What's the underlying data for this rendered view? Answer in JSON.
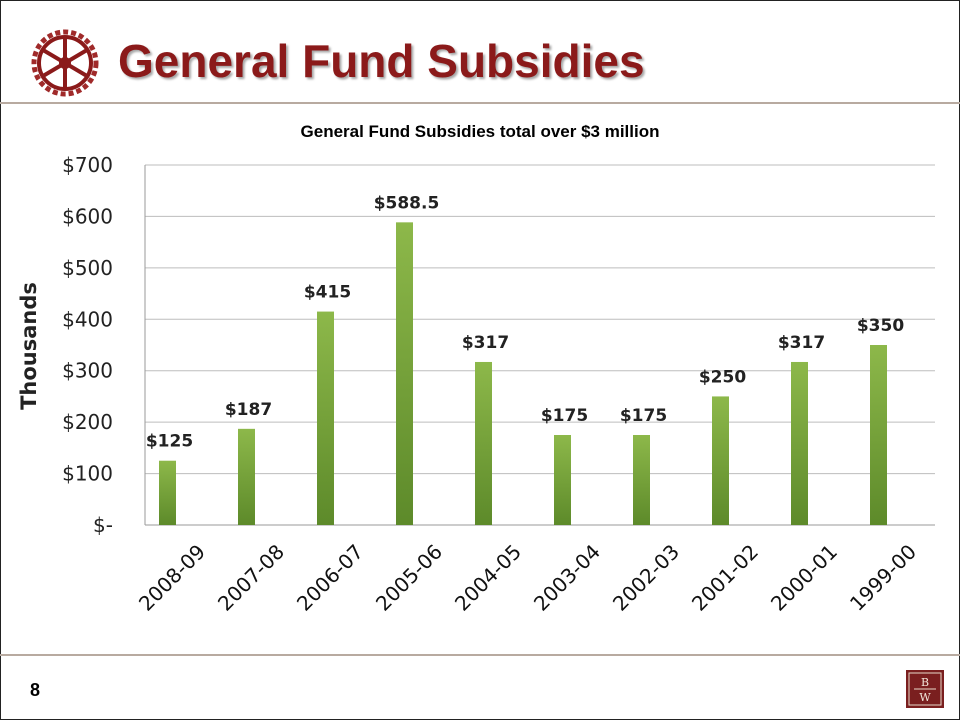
{
  "header": {
    "title": "General Fund Subsidies"
  },
  "footer": {
    "page_number": "8"
  },
  "colors": {
    "title": "#8b1a1a",
    "bar_light": "#8db84a",
    "bar_dark": "#5d8a2a",
    "rule": "#b8aaa0",
    "logo_bg": "#7a1f1f"
  },
  "icons": {
    "header_icon": "gear-wheel-icon",
    "footer_logo": "bw-logo"
  },
  "chart_data": {
    "type": "bar",
    "title": "General Fund Subsidies total over $3 million",
    "xlabel": "",
    "ylabel": "Thousands",
    "categories": [
      "2008-09",
      "2007-08",
      "2006-07",
      "2005-06",
      "2004-05",
      "2003-04",
      "2002-03",
      "2001-02",
      "2000-01",
      "1999-00"
    ],
    "values": [
      125,
      187,
      415,
      588.5,
      317,
      175,
      175,
      250,
      317,
      350
    ],
    "data_labels": [
      "$125",
      "$187",
      "$415",
      "$588.5",
      "$317",
      "$175",
      "$175",
      "$250",
      "$317",
      "$350"
    ],
    "ylim": [
      0,
      700
    ],
    "yticks": [
      0,
      100,
      200,
      300,
      400,
      500,
      600,
      700
    ],
    "ytick_labels": [
      "$-",
      "$100",
      "$200",
      "$300",
      "$400",
      "$500",
      "$600",
      "$700"
    ],
    "grid": true,
    "legend": "none"
  }
}
